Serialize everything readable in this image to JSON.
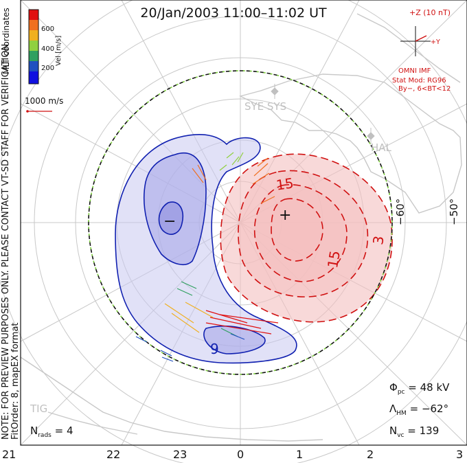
{
  "title": "20/Jan/2003 11:00–11:02 UT",
  "side_note": {
    "line1": "NOTE: FOR PREVIEW PURPOSES ONLY. PLEASE CONTACT VT-SD STAFF FOR VERIFICATION.",
    "line2": "FitOrder: 8, mapEX format"
  },
  "colorbar": {
    "title": "MLT coordinates",
    "unit": "Vel [m/s]",
    "ticks": [
      "600",
      "400",
      "200"
    ],
    "colors": [
      "#e01010",
      "#f07020",
      "#f0b020",
      "#90d040",
      "#30a060",
      "#2050c0",
      "#1010e0"
    ]
  },
  "reference_vector": {
    "label": "1000 m/s"
  },
  "imf": {
    "top": "+Z (10 nT)",
    "right": "+Y",
    "source": "OMNI IMF",
    "model": "Stat Mod: RG96",
    "condition": "By−, 6<BT<12"
  },
  "latitude_labels": [
    "−60°",
    "−50°"
  ],
  "station_labels": [
    "SYE SYS",
    "HAL",
    "TIG"
  ],
  "contour_labels": [
    "15",
    "15",
    "3",
    "9"
  ],
  "min_marker": "−",
  "max_marker": "+",
  "stats": {
    "phi_pc": "48",
    "phi_pc_unit": "kV",
    "lambda_hm": "−62°",
    "n_vc": "139",
    "n_rads": "4"
  },
  "mlt_labels": [
    "21",
    "22",
    "23",
    "0",
    "1",
    "2",
    "3"
  ]
}
